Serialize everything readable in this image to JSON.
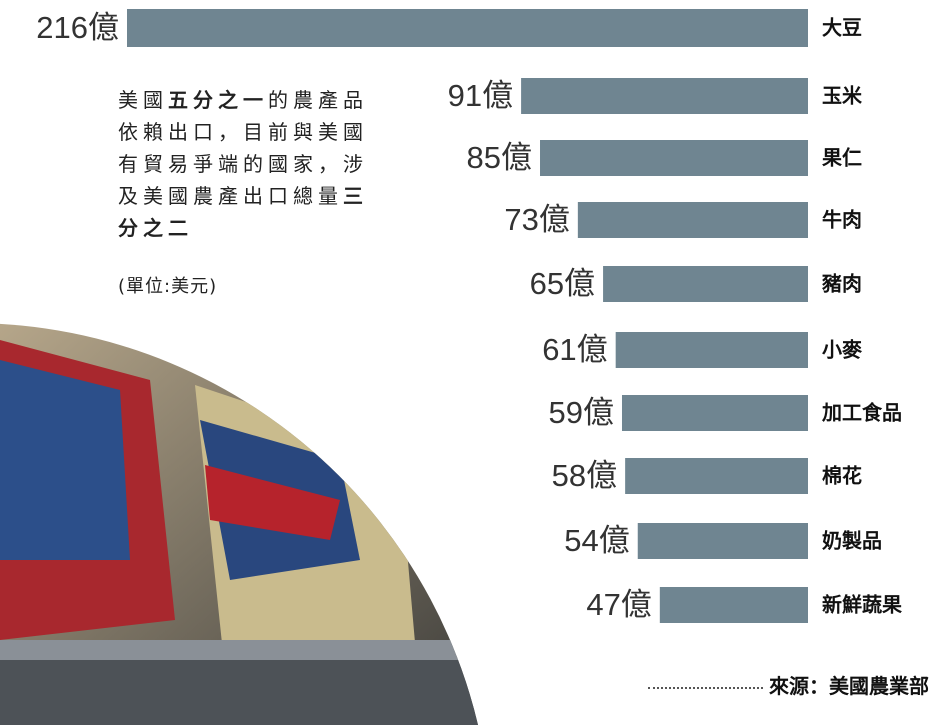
{
  "chart_data": {
    "type": "bar",
    "categories": [
      "大豆",
      "玉米",
      "果仁",
      "牛肉",
      "豬肉",
      "小麥",
      "加工食品",
      "棉花",
      "奶製品",
      "新鮮蔬果"
    ],
    "values": [
      216,
      91,
      85,
      73,
      65,
      61,
      59,
      58,
      54,
      47
    ],
    "value_labels": [
      "216億",
      "91億",
      "85億",
      "73億",
      "65億",
      "61億",
      "59億",
      "58億",
      "54億",
      "47億"
    ],
    "color": "#6f8591",
    "description": [
      {
        "text": "美國",
        "bold": false
      },
      {
        "text": "五分之一",
        "bold": true
      },
      {
        "text": "的農產品依賴出口，目前與美國有貿易爭端的國家，涉及美國農產出口總量",
        "bold": false
      },
      {
        "text": "三分之二",
        "bold": true
      }
    ],
    "unit_note": "(單位:美元)",
    "source": "來源：美國農業部"
  }
}
